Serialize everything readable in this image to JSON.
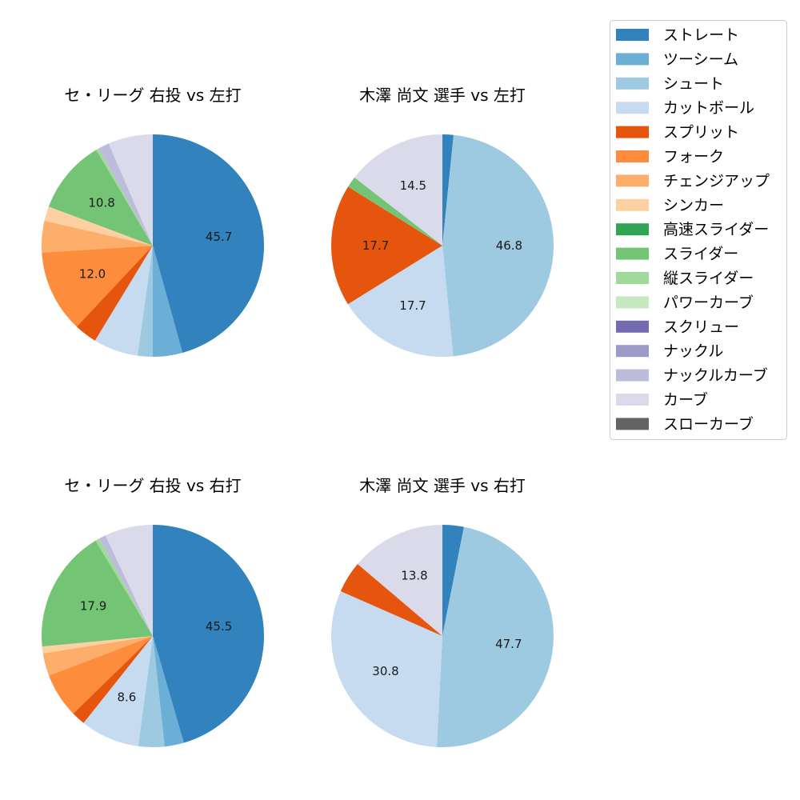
{
  "colors": {
    "ストレート": "#3182bd",
    "ツーシーム": "#6baed6",
    "シュート": "#9ecae1",
    "カットボール": "#c6dbef",
    "スプリット": "#e6550d",
    "フォーク": "#fd8d3c",
    "チェンジアップ": "#fdae6b",
    "シンカー": "#fdd0a2",
    "高速スライダー": "#31a354",
    "スライダー": "#74c476",
    "縦スライダー": "#a1d99b",
    "パワーカーブ": "#c7e9c0",
    "スクリュー": "#756bb1",
    "ナックル": "#9e9ac8",
    "ナックルカーブ": "#bcbddc",
    "カーブ": "#dadaeb",
    "スローカーブ": "#636363"
  },
  "legend": {
    "entries": [
      "ストレート",
      "ツーシーム",
      "シュート",
      "カットボール",
      "スプリット",
      "フォーク",
      "チェンジアップ",
      "シンカー",
      "高速スライダー",
      "スライダー",
      "縦スライダー",
      "パワーカーブ",
      "スクリュー",
      "ナックル",
      "ナックルカーブ",
      "カーブ",
      "スローカーブ"
    ]
  },
  "chart_data": [
    {
      "type": "pie",
      "title": "セ・リーグ 右投 vs 左打",
      "slices": [
        {
          "label": "ストレート",
          "value": 45.7,
          "shown": "45.7"
        },
        {
          "label": "ツーシーム",
          "value": 4.3
        },
        {
          "label": "シュート",
          "value": 2.2
        },
        {
          "label": "カットボール",
          "value": 6.5
        },
        {
          "label": "スプリット",
          "value": 3.3
        },
        {
          "label": "フォーク",
          "value": 12.0,
          "shown": "12.0"
        },
        {
          "label": "チェンジアップ",
          "value": 4.6
        },
        {
          "label": "シンカー",
          "value": 2.1
        },
        {
          "label": "スライダー",
          "value": 10.8,
          "shown": "10.8"
        },
        {
          "label": "縦スライダー",
          "value": 0.4
        },
        {
          "label": "ナックルカーブ",
          "value": 1.6
        },
        {
          "label": "カーブ",
          "value": 6.5
        }
      ]
    },
    {
      "type": "pie",
      "title": "木澤 尚文 選手 vs 左打",
      "slices": [
        {
          "label": "ストレート",
          "value": 1.6
        },
        {
          "label": "シュート",
          "value": 46.8,
          "shown": "46.8"
        },
        {
          "label": "カットボール",
          "value": 17.7,
          "shown": "17.7"
        },
        {
          "label": "スプリット",
          "value": 17.7,
          "shown": "17.7"
        },
        {
          "label": "スライダー",
          "value": 1.6
        },
        {
          "label": "カーブ",
          "value": 14.5,
          "shown": "14.5"
        }
      ]
    },
    {
      "type": "pie",
      "title": "セ・リーグ 右投 vs 右打",
      "slices": [
        {
          "label": "ストレート",
          "value": 45.5,
          "shown": "45.5"
        },
        {
          "label": "ツーシーム",
          "value": 2.8
        },
        {
          "label": "シュート",
          "value": 3.8
        },
        {
          "label": "カットボール",
          "value": 8.6,
          "shown": "8.6"
        },
        {
          "label": "スプリット",
          "value": 2.0
        },
        {
          "label": "フォーク",
          "value": 6.5
        },
        {
          "label": "チェンジアップ",
          "value": 3.3
        },
        {
          "label": "シンカー",
          "value": 1.0
        },
        {
          "label": "スライダー",
          "value": 17.9,
          "shown": "17.9"
        },
        {
          "label": "縦スライダー",
          "value": 0.6
        },
        {
          "label": "ナックルカーブ",
          "value": 1.0
        },
        {
          "label": "カーブ",
          "value": 7.0
        }
      ]
    },
    {
      "type": "pie",
      "title": "木澤 尚文 選手 vs 右打",
      "slices": [
        {
          "label": "ストレート",
          "value": 3.1
        },
        {
          "label": "シュート",
          "value": 47.7,
          "shown": "47.7"
        },
        {
          "label": "カットボール",
          "value": 30.8,
          "shown": "30.8"
        },
        {
          "label": "スプリット",
          "value": 4.6
        },
        {
          "label": "カーブ",
          "value": 13.8,
          "shown": "13.8"
        }
      ]
    }
  ]
}
